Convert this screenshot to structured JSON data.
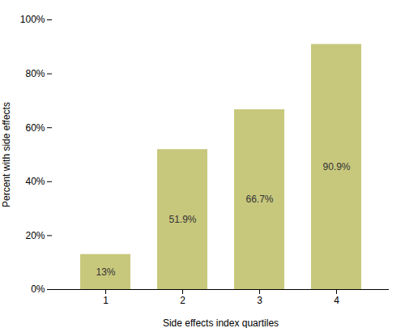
{
  "chart_data": {
    "type": "bar",
    "categories": [
      "1",
      "2",
      "3",
      "4"
    ],
    "values": [
      13.0,
      51.9,
      66.7,
      90.9
    ],
    "value_labels": [
      "13%",
      "51.9%",
      "66.7%",
      "90.9%"
    ],
    "data_labels": true,
    "color": "#c8c87d",
    "xlabel": "Side effects index quartiles",
    "ylabel": "Percent with side effects",
    "ylim": [
      0,
      100
    ],
    "yticks": [
      {
        "value": 0,
        "label": "0%"
      },
      {
        "value": 20,
        "label": "20%"
      },
      {
        "value": 40,
        "label": "40%"
      },
      {
        "value": 60,
        "label": "60%"
      },
      {
        "value": 80,
        "label": "80%"
      },
      {
        "value": 100,
        "label": "100%"
      }
    ],
    "grid": false
  }
}
